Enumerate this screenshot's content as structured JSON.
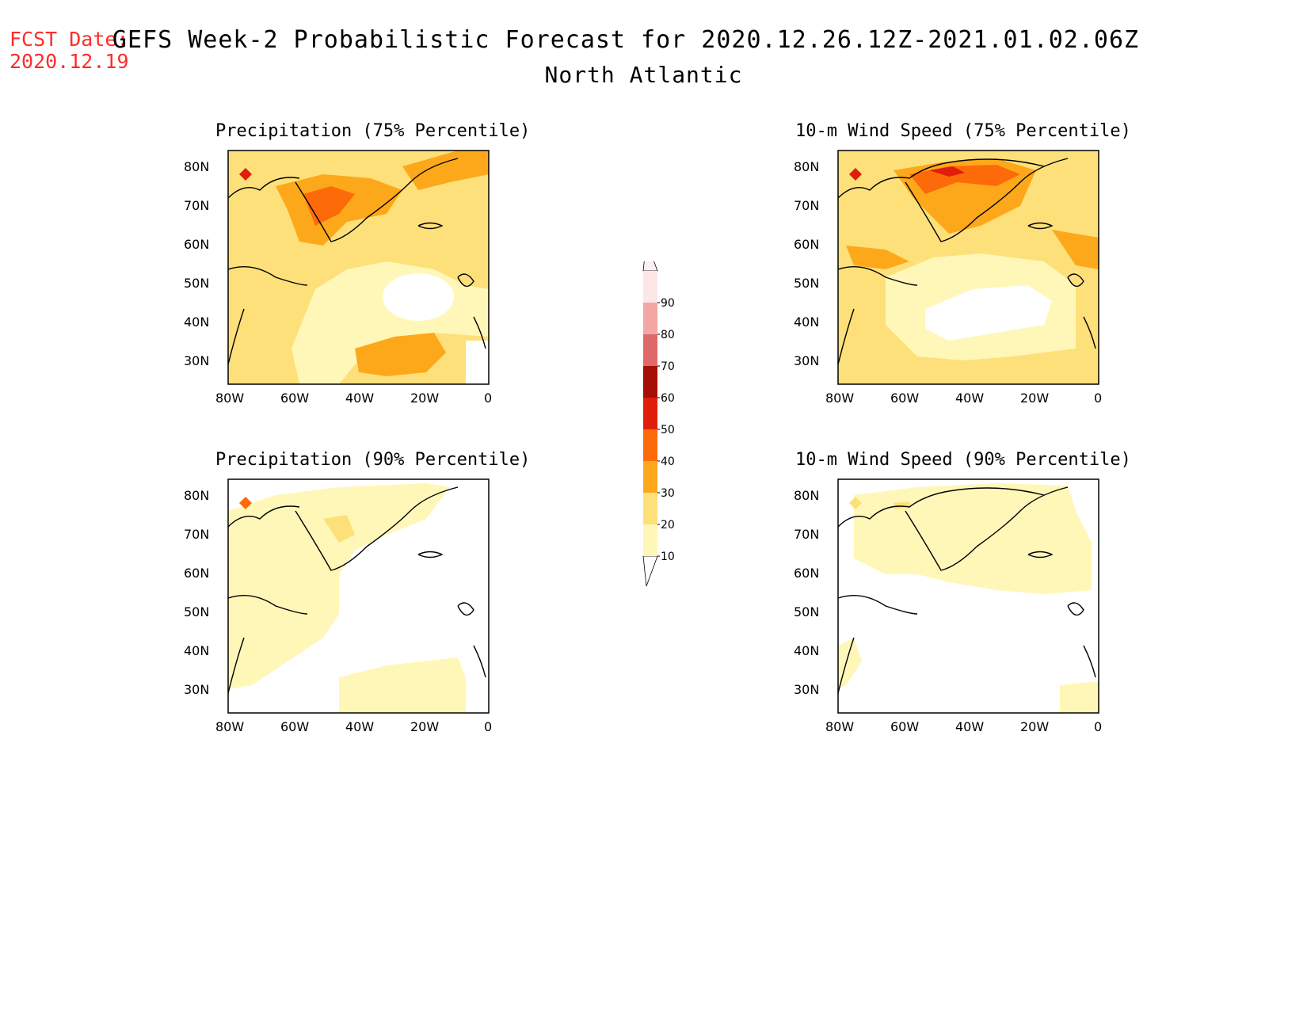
{
  "header": {
    "fcst_label": "FCST Date:",
    "fcst_date": "2020.12.19",
    "title": "GEFS Week-2 Probabilistic Forecast for 2020.12.26.12Z-2021.01.02.06Z",
    "subtitle": "North Atlantic"
  },
  "axes": {
    "lat_labels": [
      "80N",
      "70N",
      "60N",
      "50N",
      "40N",
      "30N"
    ],
    "lon_labels": [
      "80W",
      "60W",
      "40W",
      "20W",
      "0"
    ]
  },
  "panels": [
    {
      "id": "precip75",
      "title": "Precipitation (75% Percentile)"
    },
    {
      "id": "wind75",
      "title": "10-m Wind Speed (75% Percentile)"
    },
    {
      "id": "precip90",
      "title": "Precipitation (90% Percentile)"
    },
    {
      "id": "wind90",
      "title": "10-m Wind Speed (90% Percentile)"
    }
  ],
  "colorbar": {
    "levels": [
      "10",
      "20",
      "30",
      "40",
      "50",
      "60",
      "70",
      "80",
      "90"
    ],
    "colors": [
      "#fff7b8",
      "#fde07a",
      "#fda81a",
      "#fd6a0a",
      "#e01e0a",
      "#a50f05",
      "#e06a6a",
      "#f4a6a6",
      "#fde6e6"
    ]
  },
  "colors": {
    "c10": "#fff7b8",
    "c20": "#fde07a",
    "c30": "#fda81a",
    "c40": "#fd6a0a",
    "c50": "#e01e0a",
    "c60": "#a50f05"
  }
}
